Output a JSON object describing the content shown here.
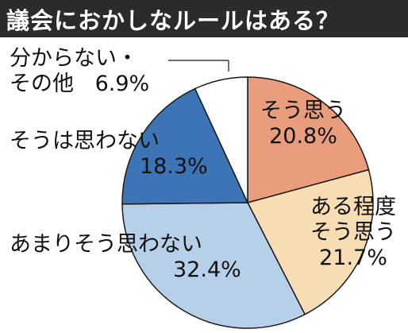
{
  "chart_data": {
    "type": "pie",
    "title": "議会におかしなルールはある？",
    "slices": [
      {
        "label": "そう思う",
        "value": 20.8,
        "display": "20.8%",
        "color": "#e99d7d"
      },
      {
        "label": "ある程度そう思う",
        "label_lines": [
          "ある程度",
          "そう思う"
        ],
        "value": 21.7,
        "display": "21.7%",
        "color": "#f6ddb4"
      },
      {
        "label": "あまりそう思わない",
        "value": 32.4,
        "display": "32.4%",
        "color": "#b6d0ea"
      },
      {
        "label": "そうは思わない",
        "value": 18.3,
        "display": "18.3%",
        "color": "#3d74b6"
      },
      {
        "label": "分からない・その他",
        "label_lines": [
          "分からない・",
          "その他"
        ],
        "value": 6.9,
        "display": "6.9%",
        "color": "#ffffff"
      }
    ]
  }
}
